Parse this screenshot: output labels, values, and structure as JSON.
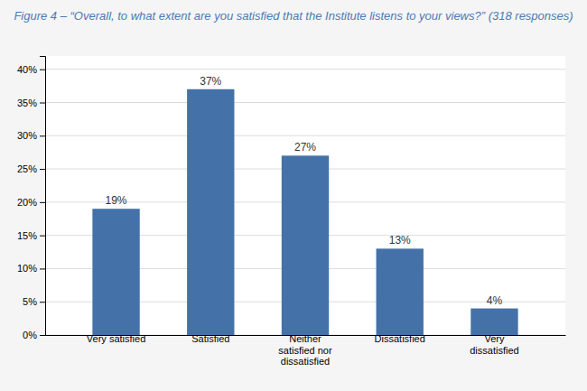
{
  "chart_data": {
    "type": "bar",
    "title": "Figure 4 – “Overall, to what extent are you satisfied that the Institute listens to your views?” (318 responses)",
    "categories": [
      "Very satisfied",
      "Satisfied",
      "Neither\nsatisfied nor\ndissatisfied",
      "Dissatisfied",
      "Very\ndissatisfied"
    ],
    "values": [
      19,
      37,
      27,
      13,
      4
    ],
    "value_labels": [
      "19%",
      "37%",
      "27%",
      "13%",
      "4%"
    ],
    "data_labels": true,
    "color": "#4472a8",
    "ylim": [
      0,
      42
    ],
    "yticks": [
      {
        "value": 0,
        "label": "0%"
      },
      {
        "value": 5,
        "label": "5%"
      },
      {
        "value": 10,
        "label": "10%"
      },
      {
        "value": 15,
        "label": "15%"
      },
      {
        "value": 20,
        "label": "20%"
      },
      {
        "value": 25,
        "label": "25%"
      },
      {
        "value": 30,
        "label": "30%"
      },
      {
        "value": 35,
        "label": "35%"
      },
      {
        "value": 40,
        "label": "40%"
      }
    ],
    "grid": true
  }
}
